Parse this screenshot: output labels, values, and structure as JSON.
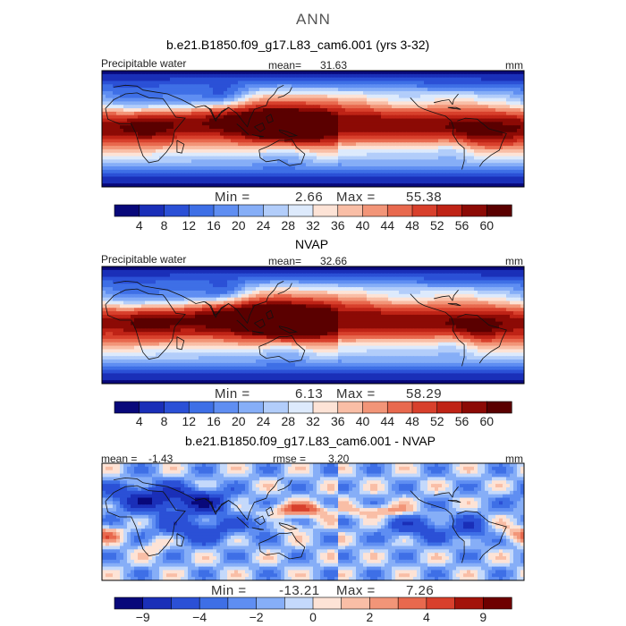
{
  "main_title": "ANN",
  "chart_data": [
    {
      "type": "heatmap",
      "panel_title": "b.e21.B1850.f09_g17.L83_cam6.001 (yrs 3-32)",
      "variable_label": "Precipitable water",
      "stat_label": "mean=",
      "stat_value": "31.63",
      "units": "mm",
      "min_label": "Min =",
      "min_value": "2.66",
      "max_label": "Max =",
      "max_value": "55.38",
      "colorbar": {
        "levels": [
          "4",
          "8",
          "12",
          "16",
          "20",
          "24",
          "28",
          "32",
          "36",
          "40",
          "44",
          "48",
          "52",
          "56",
          "60"
        ],
        "colors": [
          "#08087a",
          "#1a2fb8",
          "#2b50d6",
          "#3e6fe6",
          "#5f8ef2",
          "#86aef7",
          "#b2cdfa",
          "#ddeafc",
          "#fde3d6",
          "#f9bea6",
          "#f29578",
          "#e8694e",
          "#d8402c",
          "#bf2316",
          "#8c0a05",
          "#5a0000"
        ]
      }
    },
    {
      "type": "heatmap",
      "panel_title": "NVAP",
      "variable_label": "Precipitable water",
      "stat_label": "mean=",
      "stat_value": "32.66",
      "units": "mm",
      "min_label": "Min =",
      "min_value": "6.13",
      "max_label": "Max =",
      "max_value": "58.29",
      "colorbar": {
        "levels": [
          "4",
          "8",
          "12",
          "16",
          "20",
          "24",
          "28",
          "32",
          "36",
          "40",
          "44",
          "48",
          "52",
          "56",
          "60"
        ],
        "colors": [
          "#08087a",
          "#1a2fb8",
          "#2b50d6",
          "#3e6fe6",
          "#5f8ef2",
          "#86aef7",
          "#b2cdfa",
          "#ddeafc",
          "#fde3d6",
          "#f9bea6",
          "#f29578",
          "#e8694e",
          "#d8402c",
          "#bf2316",
          "#8c0a05",
          "#5a0000"
        ]
      }
    },
    {
      "type": "heatmap",
      "panel_title": "b.e21.B1850.f09_g17.L83_cam6.001 - NVAP",
      "left_stat_label": "mean =",
      "left_stat_value": "-1.43",
      "stat_label": "rmse =",
      "stat_value": "3.20",
      "units": "mm",
      "min_label": "Min =",
      "min_value": "-13.21",
      "max_label": "Max =",
      "max_value": "7.26",
      "colorbar": {
        "levels": [
          "-9",
          "",
          "-4",
          "",
          "-2",
          "",
          "0",
          "",
          "2",
          "",
          "4",
          "",
          "9"
        ],
        "colors": [
          "#08087a",
          "#1a2fb8",
          "#2b50d6",
          "#3e6fe6",
          "#5f8ef2",
          "#86aef7",
          "#c4d9fb",
          "#fde3d6",
          "#f9bea6",
          "#f29578",
          "#e8694e",
          "#d8402c",
          "#a3130a",
          "#6e0000"
        ]
      }
    }
  ]
}
